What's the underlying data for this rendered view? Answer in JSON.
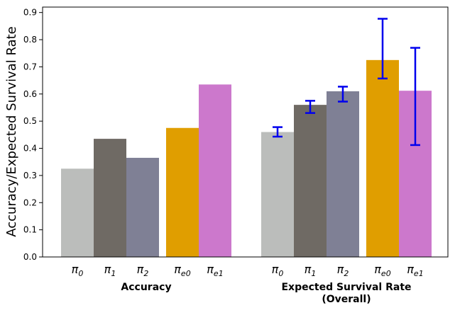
{
  "chart_data": {
    "type": "bar",
    "title": "",
    "ylabel": "Accuracy/Expected Survival Rate",
    "ylim": [
      0,
      0.92
    ],
    "yticks": [
      "0.0",
      "0.1",
      "0.2",
      "0.3",
      "0.4",
      "0.5",
      "0.6",
      "0.7",
      "0.8",
      "0.9"
    ],
    "series_names": [
      {
        "base": "π",
        "sub": "0"
      },
      {
        "base": "π",
        "sub": "1"
      },
      {
        "base": "π",
        "sub": "2"
      },
      {
        "base": "π",
        "sub": "e0"
      },
      {
        "base": "π",
        "sub": "e1"
      }
    ],
    "colors": [
      "#bbbdbb",
      "#6f6a64",
      "#7f8095",
      "#e09e00",
      "#cc78cc"
    ],
    "error_color": "#0000ee",
    "groups": [
      {
        "name_lines": [
          "Accuracy"
        ],
        "values": [
          0.325,
          0.435,
          0.365,
          0.475,
          0.635
        ],
        "errors": null
      },
      {
        "name_lines": [
          "Expected Survival Rate",
          "(Overall)"
        ],
        "values": [
          0.46,
          0.56,
          0.61,
          0.725,
          0.612
        ],
        "errors": [
          [
            0.443,
            0.478
          ],
          [
            0.53,
            0.575
          ],
          [
            0.572,
            0.627
          ],
          [
            0.657,
            0.877
          ],
          [
            0.412,
            0.77
          ]
        ]
      }
    ]
  }
}
